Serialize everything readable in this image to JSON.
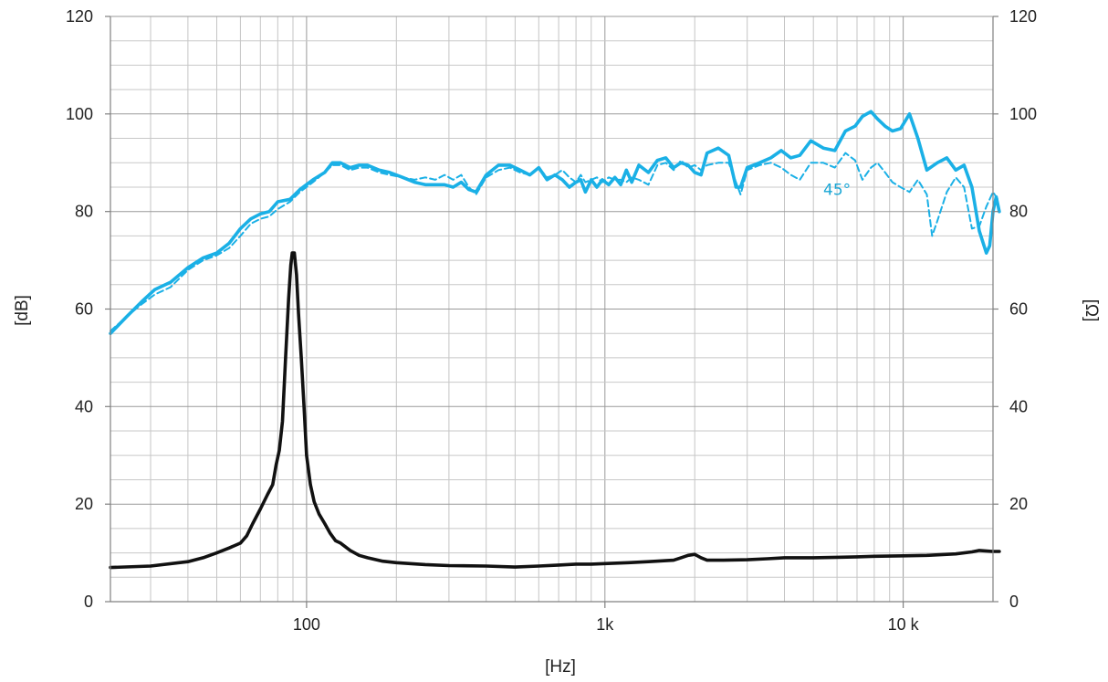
{
  "chart_data": {
    "type": "line",
    "xlabel": "[Hz]",
    "ylabel": "[dB]",
    "y2label": "[Ω]",
    "x_scale": "log",
    "xlim": [
      22,
      20000
    ],
    "ylim": [
      0,
      120
    ],
    "y2lim": [
      0,
      120
    ],
    "grid": true,
    "x_ticks": [
      {
        "value": 100,
        "label": "100"
      },
      {
        "value": 1000,
        "label": "1k"
      },
      {
        "value": 10000,
        "label": "10 k"
      }
    ],
    "y_ticks": [
      "0",
      "20",
      "40",
      "60",
      "80",
      "100",
      "120"
    ],
    "y2_ticks": [
      "0",
      "20",
      "40",
      "60",
      "80",
      "100",
      "120"
    ],
    "annotations": [
      {
        "text": "45°",
        "x": 6000,
        "y": 84.5,
        "color": "#1ba7d6"
      }
    ],
    "series": [
      {
        "style": "solid",
        "color": "#1ab0e6",
        "axis": "left",
        "points": [
          [
            22,
            55
          ],
          [
            25,
            58.5
          ],
          [
            28,
            61.5
          ],
          [
            31,
            64
          ],
          [
            35,
            65.5
          ],
          [
            40,
            68.5
          ],
          [
            45,
            70.5
          ],
          [
            50,
            71.5
          ],
          [
            55,
            73.5
          ],
          [
            60,
            76.5
          ],
          [
            65,
            78.5
          ],
          [
            70,
            79.5
          ],
          [
            75,
            80
          ],
          [
            80,
            82
          ],
          [
            88,
            82.5
          ],
          [
            95,
            84.5
          ],
          [
            105,
            86.5
          ],
          [
            115,
            88
          ],
          [
            122,
            90
          ],
          [
            130,
            90
          ],
          [
            140,
            89
          ],
          [
            150,
            89.5
          ],
          [
            160,
            89.5
          ],
          [
            175,
            88.5
          ],
          [
            190,
            88
          ],
          [
            210,
            87
          ],
          [
            230,
            86
          ],
          [
            250,
            85.5
          ],
          [
            270,
            85.5
          ],
          [
            290,
            85.5
          ],
          [
            310,
            85
          ],
          [
            330,
            86
          ],
          [
            350,
            84.5
          ],
          [
            370,
            84
          ],
          [
            400,
            87.5
          ],
          [
            440,
            89.5
          ],
          [
            480,
            89.5
          ],
          [
            520,
            88.5
          ],
          [
            560,
            87.5
          ],
          [
            600,
            89
          ],
          [
            640,
            86.5
          ],
          [
            680,
            87.5
          ],
          [
            720,
            86.5
          ],
          [
            760,
            85
          ],
          [
            800,
            86
          ],
          [
            830,
            86.5
          ],
          [
            860,
            84
          ],
          [
            900,
            86.5
          ],
          [
            940,
            85
          ],
          [
            980,
            86.5
          ],
          [
            1030,
            85.5
          ],
          [
            1080,
            87
          ],
          [
            1130,
            85.5
          ],
          [
            1180,
            88.5
          ],
          [
            1230,
            86
          ],
          [
            1300,
            89.5
          ],
          [
            1400,
            88
          ],
          [
            1500,
            90.5
          ],
          [
            1600,
            91
          ],
          [
            1700,
            89
          ],
          [
            1800,
            90
          ],
          [
            1900,
            89.5
          ],
          [
            2000,
            88
          ],
          [
            2100,
            87.5
          ],
          [
            2200,
            92
          ],
          [
            2400,
            93
          ],
          [
            2600,
            91.5
          ],
          [
            2750,
            85
          ],
          [
            2850,
            85
          ],
          [
            3000,
            89
          ],
          [
            3300,
            90
          ],
          [
            3600,
            91
          ],
          [
            3900,
            92.5
          ],
          [
            4200,
            91
          ],
          [
            4500,
            91.5
          ],
          [
            4900,
            94.5
          ],
          [
            5400,
            93
          ],
          [
            5900,
            92.5
          ],
          [
            6400,
            96.5
          ],
          [
            6900,
            97.5
          ],
          [
            7300,
            99.5
          ],
          [
            7800,
            100.5
          ],
          [
            8200,
            99
          ],
          [
            8700,
            97.5
          ],
          [
            9200,
            96.5
          ],
          [
            9800,
            97
          ],
          [
            10500,
            100
          ],
          [
            11200,
            95
          ],
          [
            12000,
            88.5
          ],
          [
            13000,
            90
          ],
          [
            14000,
            91
          ],
          [
            15000,
            88.5
          ],
          [
            16000,
            89.5
          ],
          [
            17000,
            85
          ],
          [
            18000,
            76
          ],
          [
            19000,
            71.5
          ],
          [
            19500,
            73
          ],
          [
            20000,
            80
          ],
          [
            20500,
            83
          ],
          [
            21000,
            80
          ]
        ]
      },
      {
        "style": "dashed",
        "color": "#1ab0e6",
        "axis": "left",
        "points": [
          [
            22,
            55.5
          ],
          [
            25,
            58.5
          ],
          [
            28,
            61
          ],
          [
            31,
            63
          ],
          [
            35,
            64.5
          ],
          [
            40,
            68
          ],
          [
            45,
            70
          ],
          [
            50,
            71
          ],
          [
            55,
            72.5
          ],
          [
            60,
            75
          ],
          [
            65,
            77.5
          ],
          [
            70,
            78.5
          ],
          [
            75,
            79
          ],
          [
            80,
            80.5
          ],
          [
            88,
            82
          ],
          [
            95,
            84
          ],
          [
            105,
            86
          ],
          [
            115,
            88
          ],
          [
            122,
            89.5
          ],
          [
            130,
            89.5
          ],
          [
            140,
            88.5
          ],
          [
            150,
            89
          ],
          [
            160,
            89
          ],
          [
            175,
            88
          ],
          [
            190,
            87.5
          ],
          [
            210,
            87
          ],
          [
            230,
            86.5
          ],
          [
            250,
            87
          ],
          [
            270,
            86.5
          ],
          [
            290,
            87.5
          ],
          [
            310,
            86.5
          ],
          [
            330,
            87.5
          ],
          [
            350,
            85
          ],
          [
            370,
            83.5
          ],
          [
            400,
            87
          ],
          [
            440,
            88.5
          ],
          [
            480,
            89
          ],
          [
            520,
            88
          ],
          [
            560,
            87.5
          ],
          [
            600,
            89
          ],
          [
            640,
            87
          ],
          [
            680,
            87.5
          ],
          [
            720,
            88.5
          ],
          [
            760,
            87
          ],
          [
            800,
            86
          ],
          [
            830,
            87.5
          ],
          [
            860,
            86
          ],
          [
            900,
            86.5
          ],
          [
            940,
            87
          ],
          [
            980,
            86
          ],
          [
            1030,
            87
          ],
          [
            1080,
            86.5
          ],
          [
            1130,
            86.5
          ],
          [
            1180,
            86
          ],
          [
            1230,
            87
          ],
          [
            1300,
            86.5
          ],
          [
            1400,
            85.5
          ],
          [
            1500,
            89.5
          ],
          [
            1600,
            90
          ],
          [
            1700,
            88.5
          ],
          [
            1800,
            90.5
          ],
          [
            1900,
            89
          ],
          [
            2000,
            89.5
          ],
          [
            2100,
            88.5
          ],
          [
            2200,
            89.5
          ],
          [
            2400,
            90
          ],
          [
            2600,
            90
          ],
          [
            2750,
            86
          ],
          [
            2850,
            83.5
          ],
          [
            3000,
            88.5
          ],
          [
            3300,
            89.5
          ],
          [
            3600,
            90
          ],
          [
            3900,
            89
          ],
          [
            4200,
            87.5
          ],
          [
            4500,
            86.5
          ],
          [
            4900,
            90
          ],
          [
            5400,
            90
          ],
          [
            5900,
            89
          ],
          [
            6400,
            92
          ],
          [
            6900,
            90.5
          ],
          [
            7300,
            86.5
          ],
          [
            7800,
            89
          ],
          [
            8200,
            90
          ],
          [
            8700,
            88
          ],
          [
            9200,
            86
          ],
          [
            9800,
            85
          ],
          [
            10500,
            84
          ],
          [
            11200,
            86.5
          ],
          [
            12000,
            83.5
          ],
          [
            12500,
            75
          ],
          [
            13000,
            78
          ],
          [
            14000,
            84
          ],
          [
            15000,
            87
          ],
          [
            16000,
            85
          ],
          [
            17000,
            76.5
          ],
          [
            18000,
            77
          ],
          [
            19000,
            81
          ],
          [
            20000,
            84
          ],
          [
            21000,
            82
          ]
        ]
      },
      {
        "style": "solid",
        "color": "#111111",
        "axis": "right",
        "points": [
          [
            22,
            7
          ],
          [
            30,
            7.3
          ],
          [
            40,
            8.2
          ],
          [
            45,
            9
          ],
          [
            50,
            10
          ],
          [
            55,
            11
          ],
          [
            60,
            12
          ],
          [
            63,
            13.5
          ],
          [
            66,
            16
          ],
          [
            70,
            19
          ],
          [
            74,
            22
          ],
          [
            77,
            24
          ],
          [
            79,
            28
          ],
          [
            81,
            31
          ],
          [
            83,
            37
          ],
          [
            85,
            50
          ],
          [
            87,
            62
          ],
          [
            88.5,
            69
          ],
          [
            89.5,
            71.5
          ],
          [
            91,
            71.5
          ],
          [
            92.5,
            67
          ],
          [
            94,
            59
          ],
          [
            96,
            50
          ],
          [
            98,
            40
          ],
          [
            100,
            30
          ],
          [
            103,
            24
          ],
          [
            106,
            20.5
          ],
          [
            110,
            18
          ],
          [
            115,
            16
          ],
          [
            120,
            14
          ],
          [
            125,
            12.5
          ],
          [
            130,
            12
          ],
          [
            140,
            10.5
          ],
          [
            150,
            9.5
          ],
          [
            160,
            9
          ],
          [
            180,
            8.3
          ],
          [
            200,
            8
          ],
          [
            250,
            7.6
          ],
          [
            300,
            7.4
          ],
          [
            400,
            7.3
          ],
          [
            500,
            7.1
          ],
          [
            600,
            7.3
          ],
          [
            700,
            7.5
          ],
          [
            800,
            7.7
          ],
          [
            900,
            7.7
          ],
          [
            1000,
            7.8
          ],
          [
            1200,
            8
          ],
          [
            1400,
            8.2
          ],
          [
            1600,
            8.4
          ],
          [
            1700,
            8.5
          ],
          [
            1800,
            9
          ],
          [
            1900,
            9.5
          ],
          [
            2000,
            9.7
          ],
          [
            2100,
            9
          ],
          [
            2200,
            8.5
          ],
          [
            2500,
            8.5
          ],
          [
            3000,
            8.6
          ],
          [
            3500,
            8.8
          ],
          [
            4000,
            9
          ],
          [
            5000,
            9
          ],
          [
            6000,
            9.1
          ],
          [
            7000,
            9.2
          ],
          [
            8000,
            9.3
          ],
          [
            10000,
            9.4
          ],
          [
            12000,
            9.5
          ],
          [
            15000,
            9.8
          ],
          [
            17000,
            10.2
          ],
          [
            18000,
            10.5
          ],
          [
            20000,
            10.3
          ],
          [
            21000,
            10.3
          ]
        ]
      }
    ]
  }
}
